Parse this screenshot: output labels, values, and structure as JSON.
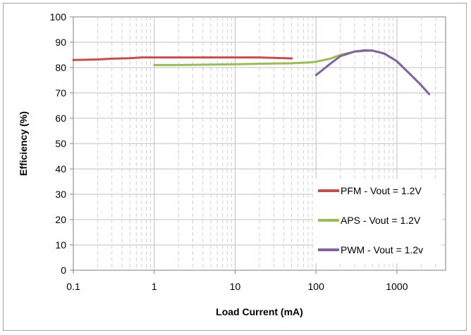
{
  "chart_data": {
    "type": "line",
    "xlabel": "Load Current (mA)",
    "ylabel": "Efficiency (%)",
    "xscale": "log",
    "xlim": [
      0.1,
      4000
    ],
    "ylim": [
      0,
      100
    ],
    "x_ticks": [
      "0.1",
      "1",
      "10",
      "100",
      "1000"
    ],
    "y_ticks": [
      "0",
      "10",
      "20",
      "30",
      "40",
      "50",
      "60",
      "70",
      "80",
      "90",
      "100"
    ],
    "grid": true,
    "legend_position": "bottom-right",
    "series": [
      {
        "name": "PFM - Vout = 1.2V",
        "color": "#c0504d",
        "x": [
          0.1,
          0.2,
          0.3,
          0.5,
          0.7,
          1,
          2,
          5,
          10,
          20,
          30,
          50
        ],
        "y": [
          83,
          83.2,
          83.5,
          83.7,
          84,
          84,
          84,
          84,
          84,
          84,
          83.8,
          83.6
        ]
      },
      {
        "name": "APS - Vout = 1.2V",
        "color": "#9bbb59",
        "x": [
          1,
          2,
          5,
          10,
          20,
          50,
          80,
          100,
          150,
          200,
          300,
          500,
          700,
          1000,
          1500,
          2000,
          2500
        ],
        "y": [
          81,
          81,
          81.2,
          81.3,
          81.5,
          81.7,
          82,
          82.3,
          83.5,
          85,
          86.3,
          86.7,
          85.5,
          82.5,
          77,
          73,
          69.5
        ]
      },
      {
        "name": "PWM - Vout = 1.2v",
        "color": "#8064a2",
        "x": [
          100,
          150,
          200,
          300,
          400,
          500,
          700,
          1000,
          1500,
          2000,
          2500
        ],
        "y": [
          77,
          81.5,
          84.5,
          86.3,
          86.8,
          86.7,
          85.5,
          82.5,
          77,
          73,
          69.5
        ]
      }
    ]
  }
}
